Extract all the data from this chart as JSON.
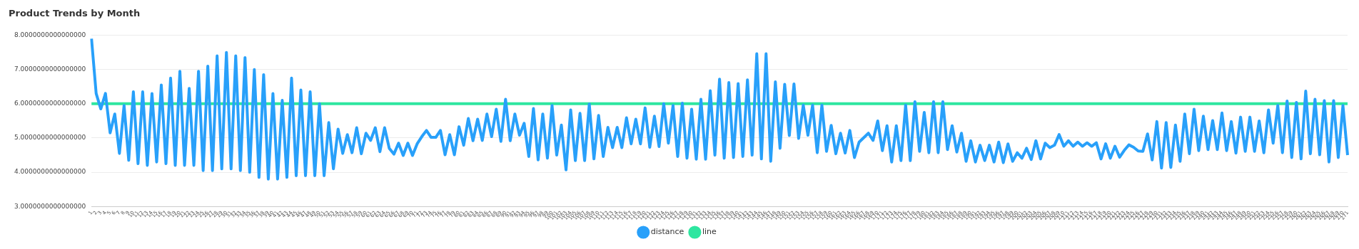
{
  "chart_data": {
    "type": "line",
    "title": "Product Trends by Month",
    "categories": [
      "1",
      "2",
      "3",
      "4",
      "5",
      "6",
      "7",
      "8",
      "9",
      "10",
      "11",
      "12",
      "13",
      "14",
      "15",
      "16",
      "17",
      "18",
      "19",
      "20",
      "21",
      "22",
      "23",
      "24",
      "25",
      "26",
      "27",
      "28",
      "29",
      "30",
      "31",
      "32",
      "33",
      "34",
      "35",
      "36",
      "37",
      "38",
      "39",
      "40",
      "41",
      "42",
      "43",
      "44",
      "45",
      "46",
      "47",
      "48",
      "49",
      "50",
      "51",
      "52",
      "53",
      "54",
      "55",
      "56",
      "57",
      "58",
      "59",
      "60",
      "61",
      "62",
      "63",
      "64",
      "65",
      "66",
      "67",
      "68",
      "69",
      "70",
      "71",
      "72",
      "73",
      "74",
      "75",
      "76",
      "77",
      "78",
      "79",
      "80",
      "81",
      "82",
      "83",
      "84",
      "85",
      "86",
      "87",
      "88",
      "89",
      "90",
      "91",
      "92",
      "93",
      "94",
      "95",
      "96",
      "97",
      "98",
      "99",
      "100",
      "101",
      "102",
      "103",
      "104",
      "105",
      "106",
      "107",
      "108",
      "109",
      "110",
      "111",
      "112",
      "113",
      "114",
      "115",
      "116",
      "117",
      "118",
      "119",
      "120",
      "121",
      "122",
      "123",
      "124",
      "125",
      "126",
      "127",
      "128",
      "129",
      "130",
      "131",
      "132",
      "133",
      "134",
      "135",
      "136",
      "137",
      "138",
      "139",
      "140",
      "141",
      "142",
      "143",
      "144",
      "145",
      "146",
      "147",
      "148",
      "149",
      "150",
      "151",
      "152",
      "153",
      "154",
      "155",
      "156",
      "157",
      "158",
      "159",
      "160",
      "161",
      "162",
      "163",
      "164",
      "165",
      "166",
      "167",
      "168",
      "169",
      "170",
      "171",
      "172",
      "173",
      "174",
      "175",
      "176",
      "177",
      "178",
      "179",
      "180",
      "181",
      "182",
      "183",
      "184",
      "185",
      "186",
      "187",
      "188",
      "189",
      "190",
      "191",
      "192",
      "193",
      "194",
      "195",
      "196",
      "197",
      "198",
      "199",
      "200",
      "201",
      "202",
      "203",
      "204",
      "205",
      "206",
      "207",
      "208",
      "209",
      "210",
      "211",
      "212",
      "213",
      "214",
      "215",
      "216",
      "217",
      "218",
      "219",
      "220",
      "221",
      "222",
      "223",
      "224",
      "225",
      "226",
      "227",
      "228",
      "229",
      "230",
      "231",
      "232",
      "233",
      "234",
      "235",
      "236",
      "237",
      "238",
      "239",
      "240",
      "241",
      "242",
      "243",
      "244",
      "245",
      "246",
      "247",
      "248",
      "249",
      "250",
      "251",
      "252",
      "253",
      "254",
      "255",
      "256",
      "257",
      "258",
      "259",
      "260",
      "261",
      "262",
      "263",
      "264",
      "265",
      "266",
      "267",
      "268",
      "269",
      "270",
      "271"
    ],
    "series": [
      {
        "name": "distance",
        "color": "#28a0fa",
        "values": [
          7.9,
          6.3,
          5.85,
          6.3,
          5.15,
          5.7,
          4.55,
          5.95,
          4.35,
          6.35,
          4.25,
          6.35,
          4.2,
          6.3,
          4.3,
          6.55,
          4.25,
          6.75,
          4.2,
          6.95,
          4.2,
          6.45,
          4.2,
          6.95,
          4.05,
          7.1,
          4.05,
          7.4,
          4.1,
          7.5,
          4.1,
          7.4,
          4.05,
          7.35,
          4.0,
          7.0,
          3.85,
          6.85,
          3.8,
          6.3,
          3.8,
          6.1,
          3.85,
          6.75,
          3.9,
          6.4,
          3.9,
          6.35,
          3.9,
          6.0,
          3.9,
          5.45,
          4.1,
          5.26,
          4.55,
          5.1,
          4.57,
          5.3,
          4.54,
          5.14,
          4.93,
          5.3,
          4.6,
          5.3,
          4.7,
          4.53,
          4.85,
          4.49,
          4.85,
          4.49,
          4.83,
          5.04,
          5.22,
          5.02,
          5.02,
          5.22,
          4.51,
          5.1,
          4.51,
          5.33,
          4.79,
          5.57,
          4.92,
          5.55,
          4.93,
          5.7,
          5.04,
          5.84,
          4.9,
          6.13,
          4.92,
          5.7,
          5.08,
          5.43,
          4.46,
          5.86,
          4.36,
          5.7,
          4.41,
          5.95,
          4.5,
          5.38,
          4.07,
          5.82,
          4.34,
          5.72,
          4.34,
          5.99,
          4.39,
          5.66,
          4.46,
          5.31,
          4.72,
          5.31,
          4.72,
          5.59,
          4.83,
          5.55,
          4.83,
          5.88,
          4.73,
          5.64,
          4.75,
          6.0,
          4.85,
          5.95,
          4.46,
          6.02,
          4.41,
          5.84,
          4.38,
          6.13,
          4.38,
          6.38,
          4.5,
          6.72,
          4.41,
          6.62,
          4.43,
          6.59,
          4.46,
          6.7,
          4.5,
          7.46,
          4.39,
          7.46,
          4.32,
          6.64,
          4.7,
          6.57,
          5.07,
          6.58,
          4.99,
          5.96,
          5.08,
          5.96,
          4.57,
          5.96,
          4.61,
          5.37,
          4.54,
          5.14,
          4.56,
          5.22,
          4.43,
          4.88,
          5.01,
          5.14,
          4.93,
          5.5,
          4.63,
          5.36,
          4.3,
          5.36,
          4.34,
          5.96,
          4.34,
          6.06,
          4.61,
          5.75,
          4.57,
          6.06,
          4.57,
          6.06,
          4.66,
          5.36,
          4.59,
          5.14,
          4.32,
          4.92,
          4.3,
          4.79,
          4.34,
          4.79,
          4.3,
          4.88,
          4.28,
          4.83,
          4.32,
          4.57,
          4.41,
          4.7,
          4.37,
          4.92,
          4.39,
          4.85,
          4.72,
          4.79,
          5.1,
          4.76,
          4.92,
          4.76,
          4.88,
          4.76,
          4.86,
          4.76,
          4.86,
          4.39,
          4.83,
          4.41,
          4.76,
          4.44,
          4.64,
          4.8,
          4.73,
          4.62,
          4.61,
          5.12,
          4.36,
          5.48,
          4.12,
          5.45,
          4.14,
          5.38,
          4.32,
          5.7,
          4.54,
          5.84,
          4.63,
          5.64,
          4.66,
          5.51,
          4.66,
          5.73,
          4.63,
          5.48,
          4.56,
          5.61,
          4.61,
          5.61,
          4.61,
          5.5,
          4.57,
          5.82,
          4.85,
          5.95,
          4.57,
          6.08,
          4.43,
          6.04,
          4.39,
          6.37,
          4.54,
          6.13,
          4.51,
          6.09,
          4.3,
          6.09,
          4.43,
          5.95,
          4.5
        ]
      },
      {
        "name": "line",
        "color": "#2ee6a0",
        "values": [
          6,
          6,
          6,
          6,
          6,
          6,
          6,
          6,
          6,
          6,
          6,
          6,
          6,
          6,
          6,
          6,
          6,
          6,
          6,
          6,
          6,
          6,
          6,
          6,
          6,
          6,
          6,
          6,
          6,
          6,
          6,
          6,
          6,
          6,
          6,
          6,
          6,
          6,
          6,
          6,
          6,
          6,
          6,
          6,
          6,
          6,
          6,
          6,
          6,
          6,
          6,
          6,
          6,
          6,
          6,
          6,
          6,
          6,
          6,
          6,
          6,
          6,
          6,
          6,
          6,
          6,
          6,
          6,
          6,
          6,
          6,
          6,
          6,
          6,
          6,
          6,
          6,
          6,
          6,
          6,
          6,
          6,
          6,
          6,
          6,
          6,
          6,
          6,
          6,
          6,
          6,
          6,
          6,
          6,
          6,
          6,
          6,
          6,
          6,
          6,
          6,
          6,
          6,
          6,
          6,
          6,
          6,
          6,
          6,
          6,
          6,
          6,
          6,
          6,
          6,
          6,
          6,
          6,
          6,
          6,
          6,
          6,
          6,
          6,
          6,
          6,
          6,
          6,
          6,
          6,
          6,
          6,
          6,
          6,
          6,
          6,
          6,
          6,
          6,
          6,
          6,
          6,
          6,
          6,
          6,
          6,
          6,
          6,
          6,
          6,
          6,
          6,
          6,
          6,
          6,
          6,
          6,
          6,
          6,
          6,
          6,
          6,
          6,
          6,
          6,
          6,
          6,
          6,
          6,
          6,
          6,
          6,
          6,
          6,
          6,
          6,
          6,
          6,
          6,
          6,
          6,
          6,
          6,
          6,
          6,
          6,
          6,
          6,
          6,
          6,
          6,
          6,
          6,
          6,
          6,
          6,
          6,
          6,
          6,
          6,
          6,
          6,
          6,
          6,
          6,
          6,
          6,
          6,
          6,
          6,
          6,
          6,
          6,
          6,
          6,
          6,
          6,
          6,
          6,
          6,
          6,
          6,
          6,
          6,
          6,
          6,
          6,
          6,
          6,
          6,
          6,
          6,
          6,
          6,
          6,
          6,
          6,
          6,
          6,
          6,
          6,
          6,
          6,
          6,
          6,
          6,
          6,
          6,
          6,
          6,
          6,
          6,
          6,
          6,
          6,
          6,
          6,
          6,
          6,
          6,
          6,
          6,
          6,
          6,
          6,
          6,
          6,
          6,
          6,
          6,
          6
        ]
      }
    ],
    "ylim": [
      3,
      8
    ],
    "yticks": [
      {
        "value": 3,
        "label": "3.0000000000000000"
      },
      {
        "value": 4,
        "label": "4.0000000000000000"
      },
      {
        "value": 5,
        "label": "5.0000000000000000"
      },
      {
        "value": 6,
        "label": "6.0000000000000000"
      },
      {
        "value": 7,
        "label": "7.0000000000000000"
      },
      {
        "value": 8,
        "label": "8.0000000000000000"
      }
    ],
    "grid": "y",
    "legend": "bottom",
    "marker": "none"
  }
}
